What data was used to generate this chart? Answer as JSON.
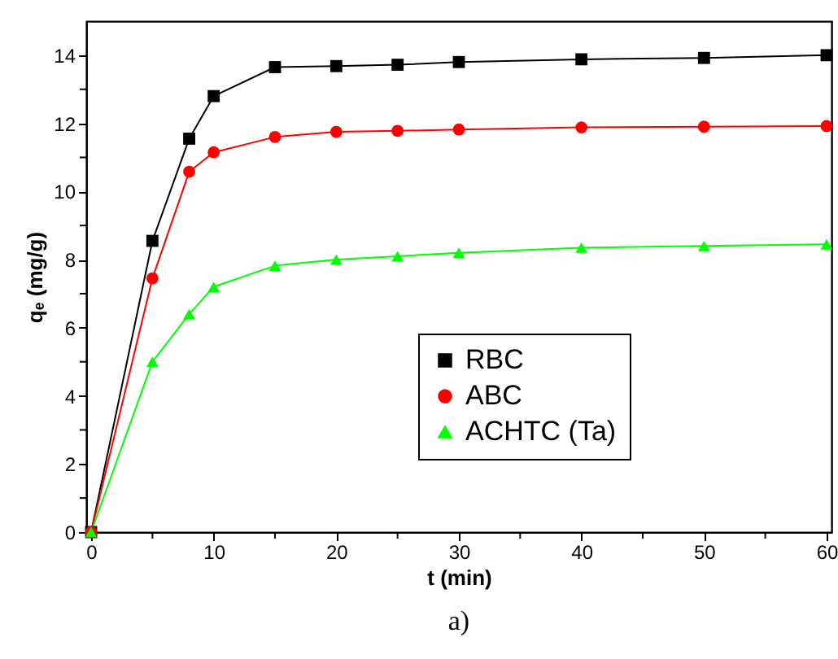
{
  "chart_data": {
    "type": "line",
    "xlabel": "t (min)",
    "ylabel": "qₑ (mg/g)",
    "annotations": [
      "a)"
    ],
    "x": [
      0,
      5,
      8,
      10,
      15,
      20,
      25,
      30,
      40,
      50,
      60
    ],
    "series": [
      {
        "name": "RBC",
        "color": "#000000",
        "marker": "square",
        "values": [
          0,
          8.55,
          11.55,
          12.8,
          13.65,
          13.68,
          13.72,
          13.8,
          13.88,
          13.92,
          14.0
        ]
      },
      {
        "name": "ABC",
        "color": "#ff0000",
        "marker": "circle",
        "values": [
          0,
          7.45,
          10.58,
          11.15,
          11.6,
          11.75,
          11.78,
          11.82,
          11.88,
          11.9,
          11.92
        ]
      },
      {
        "name": "ACHTC (Ta)",
        "color": "#00ff00",
        "marker": "triangle",
        "values": [
          0,
          5.0,
          6.4,
          7.2,
          7.82,
          8.0,
          8.1,
          8.2,
          8.35,
          8.4,
          8.45
        ]
      }
    ],
    "xlim": [
      -0.4,
      60.4
    ],
    "xticks": [
      0,
      {
        "value": 5,
        "label": null
      },
      10,
      {
        "value": 15,
        "label": null
      },
      20,
      {
        "value": 25,
        "label": null
      },
      30,
      {
        "value": 35,
        "label": null
      },
      40,
      {
        "value": 45,
        "label": null
      },
      50,
      {
        "value": 55,
        "label": null
      },
      60
    ],
    "ylim": [
      0,
      15
    ],
    "yticks": [
      0,
      {
        "value": 1,
        "label": null
      },
      2,
      {
        "value": 3,
        "label": null
      },
      4,
      {
        "value": 5,
        "label": null
      },
      6,
      {
        "value": 7,
        "label": null
      },
      8,
      {
        "value": 9,
        "label": null
      },
      10,
      {
        "value": 11,
        "label": null
      },
      12,
      {
        "value": 13,
        "label": null
      },
      14
    ],
    "grid": false,
    "legend": "right"
  }
}
